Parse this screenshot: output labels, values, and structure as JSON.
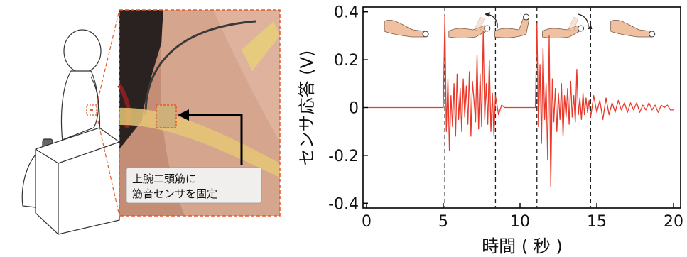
{
  "photo_callout": {
    "line1": "上腕二頭筋に",
    "line2": "筋音センサを固定"
  },
  "chart_data": {
    "type": "line",
    "xlabel": "時間 ( 秒 )",
    "ylabel": "センサ応答 (V)",
    "xlim": [
      0,
      20
    ],
    "ylim": [
      -0.42,
      0.42
    ],
    "xticks": [
      0,
      5,
      10,
      15,
      20
    ],
    "xtick_labels": [
      "0",
      "5",
      "10",
      "15",
      "20"
    ],
    "yticks": [
      0.4,
      0.2,
      0,
      -0.2,
      -0.4
    ],
    "ytick_labels": [
      "0.4",
      "0.2",
      "0",
      "-0.2",
      "-0.4"
    ],
    "grid": false,
    "line_color": "#e8392a",
    "dashed_markers_x": [
      5.1,
      8.4,
      11.1,
      14.6
    ],
    "arm_icons": [
      "arm-extended-icon",
      "arm-flexing-icon",
      "arm-flexed-icon",
      "arm-extending-icon",
      "arm-extended-icon"
    ],
    "series": [
      {
        "x": [
          0,
          0.5,
          1,
          1.5,
          2,
          2.5,
          3,
          3.5,
          4,
          4.5,
          5.0,
          5.1,
          5.2,
          5.3,
          5.4,
          5.5,
          5.6,
          5.7,
          5.8,
          5.9,
          6.0,
          6.1,
          6.2,
          6.3,
          6.4,
          6.5,
          6.6,
          6.7,
          6.8,
          6.9,
          7.0,
          7.1,
          7.2,
          7.3,
          7.4,
          7.5,
          7.6,
          7.7,
          7.8,
          7.9,
          8.0,
          8.1,
          8.2,
          8.3,
          8.4,
          8.6,
          8.8,
          9.0,
          9.5,
          10,
          10.5,
          11.0,
          11.1,
          11.2,
          11.3,
          11.4,
          11.5,
          11.6,
          11.7,
          11.8,
          11.9,
          12.0,
          12.1,
          12.2,
          12.3,
          12.4,
          12.5,
          12.6,
          12.7,
          12.8,
          12.9,
          13.0,
          13.1,
          13.2,
          13.3,
          13.4,
          13.5,
          13.6,
          13.7,
          13.8,
          13.9,
          14.0,
          14.1,
          14.2,
          14.3,
          14.4,
          14.5,
          14.6,
          14.8,
          15.0,
          15.2,
          15.4,
          15.6,
          15.8,
          16.0,
          16.2,
          16.4,
          16.6,
          16.8,
          17.0,
          17.2,
          17.4,
          17.6,
          17.8,
          18.0,
          18.2,
          18.4,
          18.6,
          18.8,
          19.0,
          19.2,
          19.4,
          19.6,
          19.8,
          20.0
        ],
        "y": [
          0,
          0,
          0,
          0,
          0,
          0,
          0,
          0,
          0,
          0,
          0,
          0.38,
          -0.1,
          0.12,
          -0.18,
          0.05,
          -0.08,
          0.1,
          -0.12,
          0.14,
          -0.05,
          0.08,
          -0.1,
          0.12,
          -0.04,
          0.09,
          -0.07,
          0.15,
          -0.12,
          0.11,
          0.03,
          -0.06,
          0.22,
          -0.09,
          0.14,
          -0.08,
          0.32,
          -0.05,
          0.1,
          -0.07,
          0.2,
          -0.1,
          0.06,
          -0.12,
          0.05,
          -0.03,
          0.01,
          0,
          0,
          0,
          0,
          0,
          0.35,
          -0.08,
          0.18,
          -0.15,
          0.25,
          -0.05,
          0.1,
          -0.22,
          0.3,
          -0.33,
          0.12,
          -0.06,
          0.08,
          -0.1,
          0.06,
          -0.05,
          0.1,
          -0.12,
          0.05,
          -0.04,
          0.08,
          -0.07,
          0.11,
          -0.04,
          0.05,
          -0.06,
          0.16,
          -0.03,
          0.04,
          -0.05,
          0.06,
          -0.03,
          0.04,
          -0.02,
          0.03,
          -0.04,
          0.05,
          -0.02,
          0.03,
          -0.05,
          0.04,
          -0.03,
          0.02,
          -0.02,
          0.03,
          -0.01,
          0.02,
          -0.02,
          0.02,
          -0.01,
          0.02,
          -0.02,
          0.01,
          -0.01,
          0.02,
          -0.01,
          0.01,
          -0.02,
          0.01,
          0,
          0.01,
          -0.01,
          -0.01
        ]
      }
    ]
  }
}
